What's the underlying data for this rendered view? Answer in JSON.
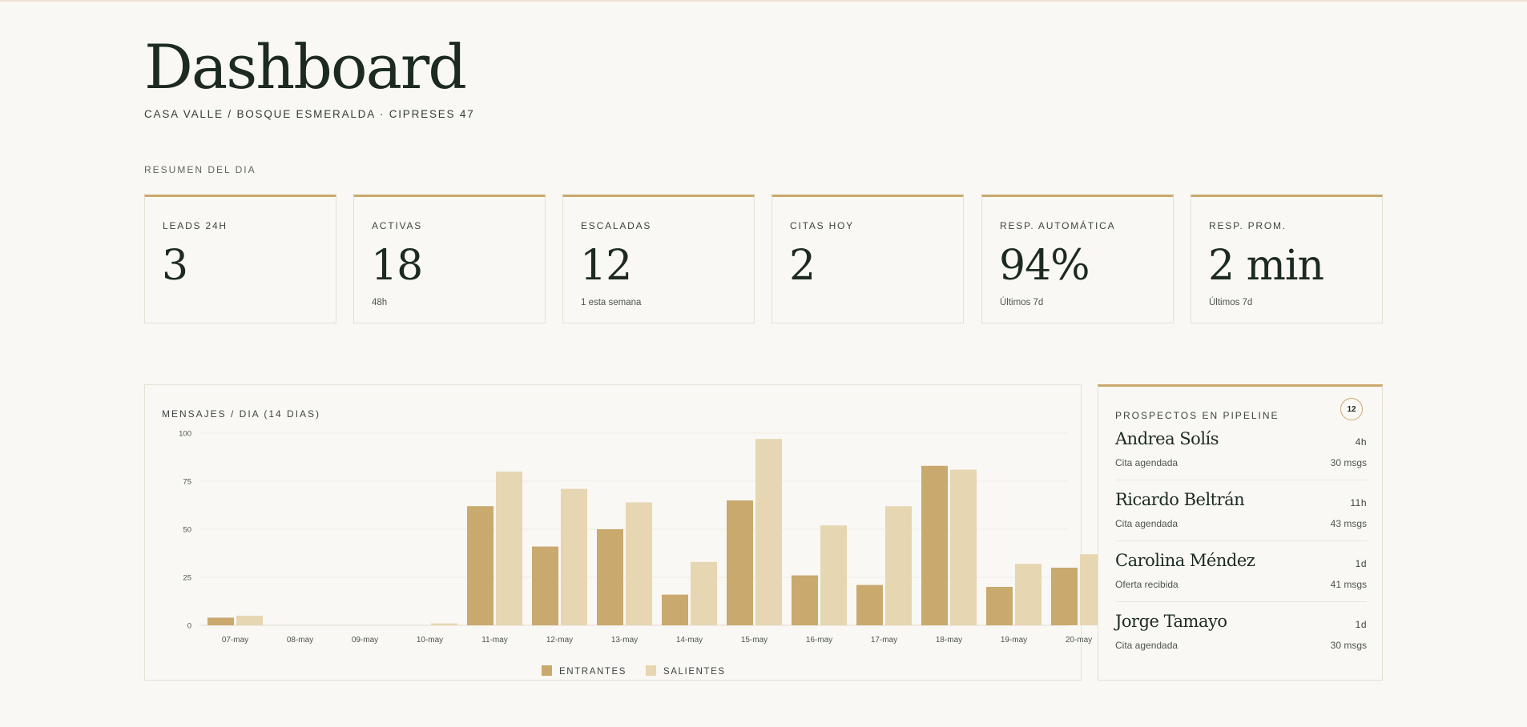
{
  "header": {
    "title": "Dashboard",
    "subtitle": "CASA VALLE / BOSQUE ESMERALDA · CIPRESES 47"
  },
  "summary": {
    "label": "RESUMEN DEL DIA",
    "kpis": [
      {
        "label": "LEADS 24H",
        "value": "3",
        "sub": ""
      },
      {
        "label": "ACTIVAS",
        "value": "18",
        "sub": "48h"
      },
      {
        "label": "ESCALADAS",
        "value": "12",
        "sub": "1 esta semana"
      },
      {
        "label": "CITAS HOY",
        "value": "2",
        "sub": ""
      },
      {
        "label": "RESP. AUTOMÁTICA",
        "value": "94%",
        "sub": "Últimos 7d"
      },
      {
        "label": "RESP. PROM.",
        "value": "2 min",
        "sub": "Últimos 7d"
      }
    ]
  },
  "chart": {
    "title": "MENSAJES / DIA (14 DIAS)"
  },
  "chart_data": {
    "type": "bar",
    "categories": [
      "07-may",
      "08-may",
      "09-may",
      "10-may",
      "11-may",
      "12-may",
      "13-may",
      "14-may",
      "15-may",
      "16-may",
      "17-may",
      "18-may",
      "19-may",
      "20-may"
    ],
    "series": [
      {
        "name": "ENTRANTES",
        "values": [
          4,
          0,
          0,
          0,
          62,
          41,
          50,
          16,
          65,
          26,
          21,
          83,
          20,
          30
        ]
      },
      {
        "name": "SALIENTES",
        "values": [
          5,
          0,
          0,
          1,
          80,
          71,
          64,
          33,
          97,
          52,
          62,
          81,
          32,
          37
        ]
      }
    ],
    "yticks": [
      0,
      25,
      50,
      75,
      100
    ],
    "ylim": [
      0,
      100
    ],
    "grid": true,
    "legend": "bottom-center",
    "colors": {
      "ENTRANTES": "#c9a96d",
      "SALIENTES": "#e6d6b2"
    }
  },
  "pipeline": {
    "label": "PROSPECTOS EN PIPELINE",
    "count": "12",
    "prospects": [
      {
        "name": "Andrea Solís",
        "time": "4h",
        "status": "Cita agendada",
        "messages": "30 msgs"
      },
      {
        "name": "Ricardo Beltrán",
        "time": "11h",
        "status": "Cita agendada",
        "messages": "43 msgs"
      },
      {
        "name": "Carolina Méndez",
        "time": "1d",
        "status": "Oferta recibida",
        "messages": "41 msgs"
      },
      {
        "name": "Jorge Tamayo",
        "time": "1d",
        "status": "Cita agendada",
        "messages": "30 msgs"
      }
    ]
  },
  "colors": {
    "background": "#f9f8f4",
    "accent": "#caa96c",
    "text": "#1c2a22",
    "border": "#e5e0d4"
  }
}
